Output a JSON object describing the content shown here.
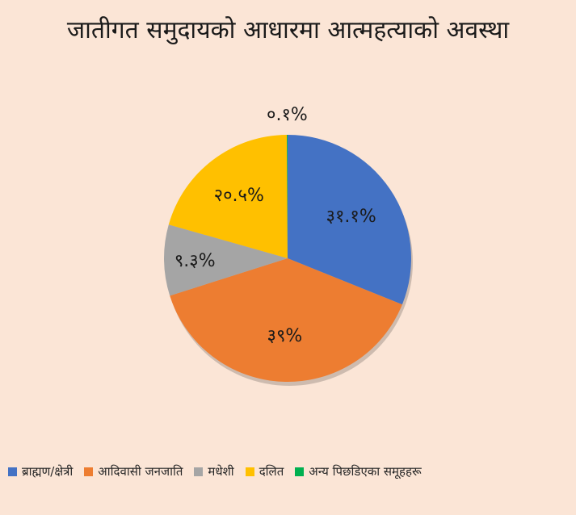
{
  "chart_data": {
    "type": "pie",
    "title": "जातीगत समुदायको आधारमा आत्महत्याको अवस्था",
    "slices": [
      {
        "label": "ब्राह्मण/क्षेत्री",
        "value": 31.1,
        "value_label": "३१.१%",
        "color": "#4472c4"
      },
      {
        "label": "आदिवासी जनजाति",
        "value": 39,
        "value_label": "३९%",
        "color": "#ed7d31"
      },
      {
        "label": "मधेशी",
        "value": 9.3,
        "value_label": "९.३%",
        "color": "#a5a5a5"
      },
      {
        "label": "दलित",
        "value": 20.5,
        "value_label": "२०.५%",
        "color": "#ffc000"
      },
      {
        "label": "अन्य पिछडिएका समूहहरू",
        "value": 0.1,
        "value_label": "०.१%",
        "color": "#00b050"
      }
    ],
    "legend_position": "bottom"
  }
}
